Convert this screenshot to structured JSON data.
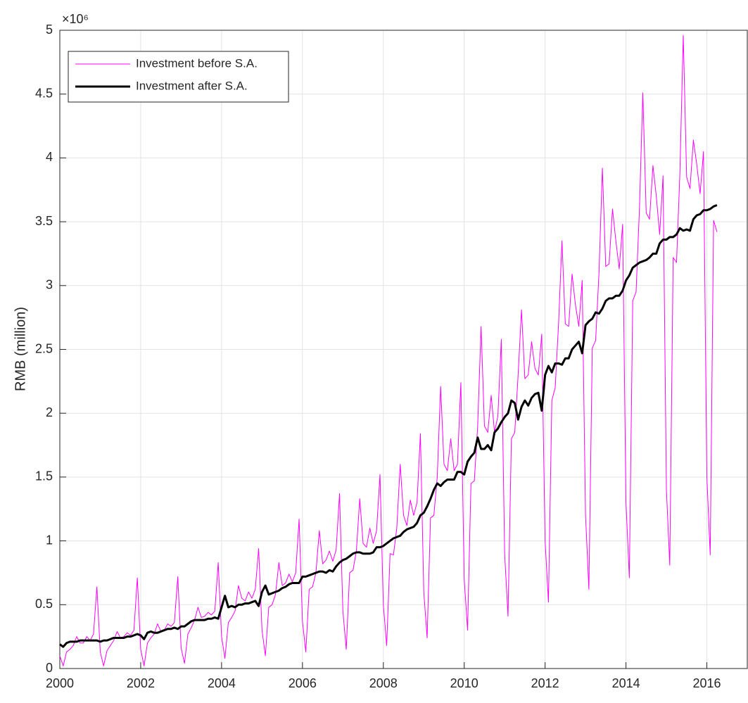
{
  "chart_data": {
    "type": "line",
    "y_label": "RMB (million)",
    "y_exponent": "×10⁶",
    "xlim": [
      2000,
      2017
    ],
    "xticks": [
      2000,
      2002,
      2004,
      2006,
      2008,
      2010,
      2012,
      2014,
      2016
    ],
    "ylim": [
      0,
      5
    ],
    "yticks": [
      0,
      0.5,
      1,
      1.5,
      2,
      2.5,
      3,
      3.5,
      4,
      4.5,
      5
    ],
    "grid": true,
    "legend": "northwest",
    "x": [
      2000,
      2000.083,
      2000.167,
      2000.25,
      2000.333,
      2000.417,
      2000.5,
      2000.583,
      2000.667,
      2000.75,
      2000.833,
      2000.917,
      2001,
      2001.083,
      2001.167,
      2001.25,
      2001.333,
      2001.417,
      2001.5,
      2001.583,
      2001.667,
      2001.75,
      2001.833,
      2001.917,
      2002,
      2002.083,
      2002.167,
      2002.25,
      2002.333,
      2002.417,
      2002.5,
      2002.583,
      2002.667,
      2002.75,
      2002.833,
      2002.917,
      2003,
      2003.083,
      2003.167,
      2003.25,
      2003.333,
      2003.417,
      2003.5,
      2003.583,
      2003.667,
      2003.75,
      2003.833,
      2003.917,
      2004,
      2004.083,
      2004.167,
      2004.25,
      2004.333,
      2004.417,
      2004.5,
      2004.583,
      2004.667,
      2004.75,
      2004.833,
      2004.917,
      2005,
      2005.083,
      2005.167,
      2005.25,
      2005.333,
      2005.417,
      2005.5,
      2005.583,
      2005.667,
      2005.75,
      2005.833,
      2005.917,
      2006,
      2006.083,
      2006.167,
      2006.25,
      2006.333,
      2006.417,
      2006.5,
      2006.583,
      2006.667,
      2006.75,
      2006.833,
      2006.917,
      2007,
      2007.083,
      2007.167,
      2007.25,
      2007.333,
      2007.417,
      2007.5,
      2007.583,
      2007.667,
      2007.75,
      2007.833,
      2007.917,
      2008,
      2008.083,
      2008.167,
      2008.25,
      2008.333,
      2008.417,
      2008.5,
      2008.583,
      2008.667,
      2008.75,
      2008.833,
      2008.917,
      2009,
      2009.083,
      2009.167,
      2009.25,
      2009.333,
      2009.417,
      2009.5,
      2009.583,
      2009.667,
      2009.75,
      2009.833,
      2009.917,
      2010,
      2010.083,
      2010.167,
      2010.25,
      2010.333,
      2010.417,
      2010.5,
      2010.583,
      2010.667,
      2010.75,
      2010.833,
      2010.917,
      2011,
      2011.083,
      2011.167,
      2011.25,
      2011.333,
      2011.417,
      2011.5,
      2011.583,
      2011.667,
      2011.75,
      2011.833,
      2011.917,
      2012,
      2012.083,
      2012.167,
      2012.25,
      2012.333,
      2012.417,
      2012.5,
      2012.583,
      2012.667,
      2012.75,
      2012.833,
      2012.917,
      2013,
      2013.083,
      2013.167,
      2013.25,
      2013.333,
      2013.417,
      2013.5,
      2013.583,
      2013.667,
      2013.75,
      2013.833,
      2013.917,
      2014,
      2014.083,
      2014.167,
      2014.25,
      2014.333,
      2014.417,
      2014.5,
      2014.583,
      2014.667,
      2014.75,
      2014.833,
      2014.917,
      2015,
      2015.083,
      2015.167,
      2015.25,
      2015.333,
      2015.417,
      2015.5,
      2015.583,
      2015.667,
      2015.75,
      2015.833,
      2015.917,
      2016,
      2016.083,
      2016.167,
      2016.25
    ],
    "series": [
      {
        "name": "Investment before S.A.",
        "color": "#ff00ff",
        "width": 1,
        "values": [
          0.1,
          0.02,
          0.13,
          0.15,
          0.18,
          0.25,
          0.2,
          0.2,
          0.25,
          0.22,
          0.27,
          0.64,
          0.13,
          0.02,
          0.14,
          0.18,
          0.22,
          0.29,
          0.24,
          0.25,
          0.28,
          0.26,
          0.3,
          0.71,
          0.15,
          0.02,
          0.2,
          0.24,
          0.27,
          0.35,
          0.29,
          0.3,
          0.35,
          0.33,
          0.36,
          0.72,
          0.16,
          0.04,
          0.27,
          0.32,
          0.38,
          0.48,
          0.4,
          0.41,
          0.44,
          0.42,
          0.45,
          0.83,
          0.25,
          0.08,
          0.36,
          0.4,
          0.45,
          0.65,
          0.55,
          0.53,
          0.6,
          0.55,
          0.62,
          0.94,
          0.3,
          0.1,
          0.48,
          0.5,
          0.58,
          0.83,
          0.65,
          0.67,
          0.74,
          0.68,
          0.75,
          1.17,
          0.37,
          0.13,
          0.62,
          0.64,
          0.75,
          1.08,
          0.82,
          0.85,
          0.92,
          0.84,
          0.93,
          1.37,
          0.45,
          0.15,
          0.75,
          0.77,
          0.92,
          1.33,
          0.98,
          0.95,
          1.1,
          0.98,
          1.08,
          1.52,
          0.5,
          0.18,
          0.9,
          0.89,
          1.1,
          1.6,
          1.2,
          1.12,
          1.32,
          1.2,
          1.3,
          1.84,
          0.6,
          0.24,
          1.18,
          1.2,
          1.5,
          2.21,
          1.6,
          1.55,
          1.8,
          1.55,
          1.6,
          2.24,
          0.7,
          0.3,
          1.45,
          1.47,
          1.9,
          2.68,
          1.9,
          1.85,
          2.14,
          1.85,
          1.98,
          2.58,
          0.9,
          0.41,
          1.8,
          1.85,
          2.3,
          2.81,
          2.27,
          2.3,
          2.56,
          2.35,
          2.3,
          2.62,
          1.0,
          0.52,
          2.1,
          2.2,
          2.7,
          3.35,
          2.7,
          2.68,
          3.09,
          2.85,
          2.68,
          3.04,
          1.2,
          0.62,
          2.51,
          2.57,
          3.1,
          3.92,
          3.15,
          3.17,
          3.6,
          3.35,
          3.13,
          3.48,
          1.3,
          0.71,
          2.88,
          2.95,
          3.6,
          4.51,
          3.57,
          3.52,
          3.94,
          3.7,
          3.4,
          3.86,
          1.4,
          0.81,
          3.22,
          3.18,
          3.88,
          4.96,
          3.85,
          3.76,
          4.14,
          3.95,
          3.72,
          4.05,
          1.5,
          0.89,
          3.51,
          3.42
        ]
      },
      {
        "name": "Investment after S.A.",
        "color": "#000000",
        "width": 3,
        "values": [
          0.19,
          0.17,
          0.2,
          0.21,
          0.21,
          0.21,
          0.22,
          0.22,
          0.22,
          0.22,
          0.22,
          0.22,
          0.21,
          0.22,
          0.22,
          0.23,
          0.24,
          0.24,
          0.24,
          0.24,
          0.25,
          0.25,
          0.26,
          0.27,
          0.26,
          0.23,
          0.28,
          0.29,
          0.28,
          0.28,
          0.29,
          0.3,
          0.31,
          0.31,
          0.32,
          0.31,
          0.33,
          0.33,
          0.35,
          0.37,
          0.38,
          0.38,
          0.38,
          0.38,
          0.39,
          0.39,
          0.4,
          0.39,
          0.48,
          0.57,
          0.48,
          0.49,
          0.48,
          0.5,
          0.5,
          0.51,
          0.51,
          0.52,
          0.53,
          0.49,
          0.6,
          0.65,
          0.58,
          0.59,
          0.6,
          0.61,
          0.63,
          0.64,
          0.66,
          0.67,
          0.67,
          0.67,
          0.72,
          0.72,
          0.73,
          0.74,
          0.75,
          0.76,
          0.76,
          0.75,
          0.77,
          0.76,
          0.8,
          0.83,
          0.85,
          0.86,
          0.88,
          0.9,
          0.91,
          0.91,
          0.9,
          0.9,
          0.9,
          0.91,
          0.95,
          0.95,
          0.96,
          0.98,
          1.0,
          1.02,
          1.03,
          1.04,
          1.07,
          1.09,
          1.1,
          1.11,
          1.14,
          1.2,
          1.22,
          1.27,
          1.33,
          1.4,
          1.45,
          1.43,
          1.46,
          1.48,
          1.48,
          1.48,
          1.54,
          1.54,
          1.52,
          1.62,
          1.66,
          1.69,
          1.81,
          1.72,
          1.72,
          1.75,
          1.71,
          1.85,
          1.88,
          1.93,
          1.97,
          2.0,
          2.1,
          2.08,
          1.95,
          2.05,
          2.1,
          2.06,
          2.12,
          2.15,
          2.16,
          2.02,
          2.3,
          2.37,
          2.32,
          2.39,
          2.39,
          2.38,
          2.43,
          2.43,
          2.5,
          2.53,
          2.56,
          2.47,
          2.69,
          2.72,
          2.74,
          2.79,
          2.78,
          2.82,
          2.88,
          2.9,
          2.9,
          2.92,
          2.92,
          2.96,
          3.04,
          3.08,
          3.14,
          3.16,
          3.18,
          3.19,
          3.2,
          3.22,
          3.25,
          3.25,
          3.33,
          3.36,
          3.36,
          3.38,
          3.38,
          3.4,
          3.45,
          3.43,
          3.44,
          3.43,
          3.52,
          3.55,
          3.56,
          3.59,
          3.59,
          3.6,
          3.62,
          3.63
        ]
      }
    ]
  }
}
